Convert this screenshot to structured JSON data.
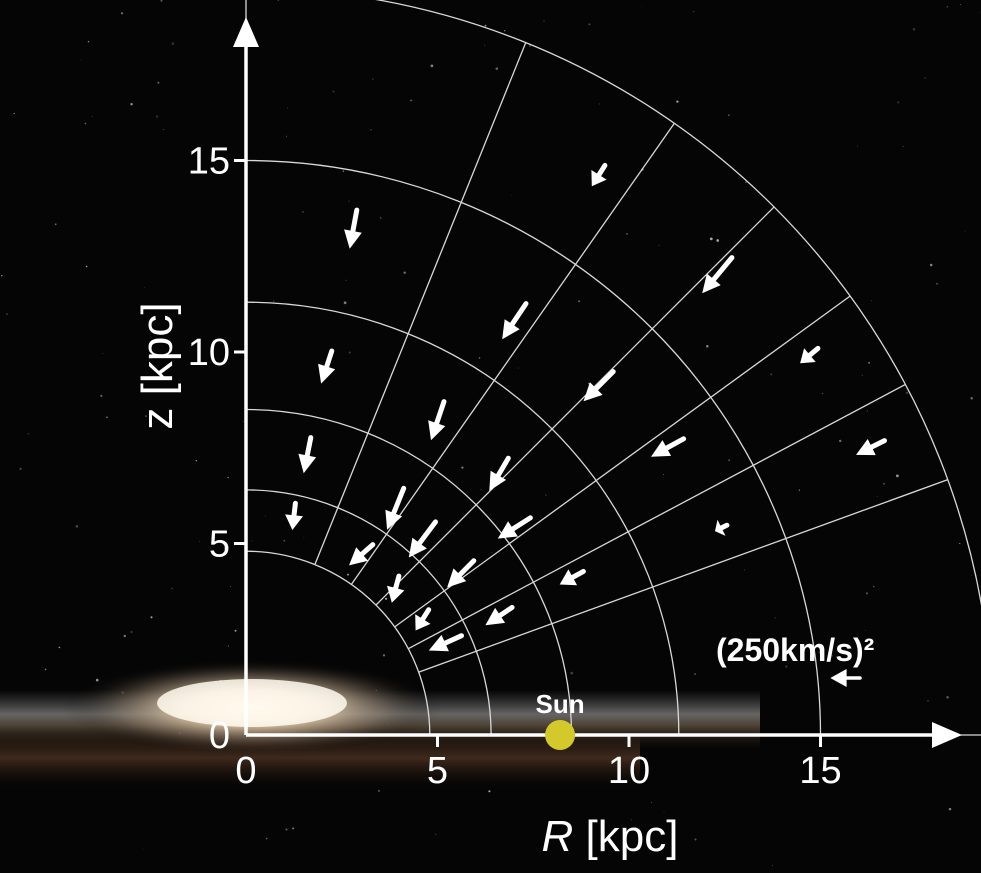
{
  "chart_data": {
    "type": "vector-field",
    "xlabel": "R [kpc]",
    "xlabel_var": "R",
    "xlabel_unit": " [kpc]",
    "ylabel": "z [kpc]",
    "xlim": [
      0,
      18.5
    ],
    "ylim": [
      0,
      18.5
    ],
    "x_ticks": [
      0,
      5,
      10,
      15
    ],
    "y_ticks": [
      0,
      5,
      10,
      15
    ],
    "grid": {
      "radii": [
        4.8,
        6.4,
        8.5,
        11.3,
        15.0,
        19.5
      ],
      "angles_deg": [
        0,
        20,
        28,
        36,
        45,
        55,
        68,
        90
      ]
    },
    "legend": {
      "label": "(250km/s)²",
      "placement": "bottom-right",
      "reference_length": 1.0
    },
    "sun": {
      "label": "Sun",
      "R": 8.2,
      "z": 0,
      "color": "#d4c92a"
    },
    "vectors": [
      {
        "R": 1.25,
        "z": 5.7,
        "dR": -0.05,
        "dz": -0.45
      },
      {
        "R": 1.6,
        "z": 7.3,
        "dR": -0.12,
        "dz": -0.6
      },
      {
        "R": 2.1,
        "z": 9.6,
        "dR": -0.18,
        "dz": -0.55
      },
      {
        "R": 2.8,
        "z": 13.2,
        "dR": -0.12,
        "dz": -0.65
      },
      {
        "R": 3.0,
        "z": 4.7,
        "dR": -0.4,
        "dz": -0.35
      },
      {
        "R": 3.9,
        "z": 5.9,
        "dR": -0.28,
        "dz": -0.7
      },
      {
        "R": 5.0,
        "z": 8.2,
        "dR": -0.22,
        "dz": -0.65
      },
      {
        "R": 3.9,
        "z": 3.8,
        "dR": -0.12,
        "dz": -0.45
      },
      {
        "R": 4.6,
        "z": 5.1,
        "dR": -0.45,
        "dz": -0.6
      },
      {
        "R": 6.6,
        "z": 6.8,
        "dR": -0.32,
        "dz": -0.55
      },
      {
        "R": 7.0,
        "z": 10.8,
        "dR": -0.4,
        "dz": -0.6
      },
      {
        "R": 4.6,
        "z": 3.0,
        "dR": -0.22,
        "dz": -0.35
      },
      {
        "R": 5.6,
        "z": 4.2,
        "dR": -0.45,
        "dz": -0.45
      },
      {
        "R": 7.0,
        "z": 5.4,
        "dR": -0.55,
        "dz": -0.35
      },
      {
        "R": 9.2,
        "z": 9.1,
        "dR": -0.5,
        "dz": -0.5
      },
      {
        "R": 9.2,
        "z": 14.6,
        "dR": -0.22,
        "dz": -0.35
      },
      {
        "R": 5.2,
        "z": 2.4,
        "dR": -0.55,
        "dz": -0.25
      },
      {
        "R": 6.6,
        "z": 3.1,
        "dR": -0.45,
        "dz": -0.3
      },
      {
        "R": 8.5,
        "z": 4.1,
        "dR": -0.4,
        "dz": -0.22
      },
      {
        "R": 11.0,
        "z": 7.5,
        "dR": -0.55,
        "dz": -0.3
      },
      {
        "R": 12.3,
        "z": 12.0,
        "dR": -0.5,
        "dz": -0.6
      },
      {
        "R": 12.4,
        "z": 5.4,
        "dR": -0.2,
        "dz": -0.1
      },
      {
        "R": 14.7,
        "z": 9.9,
        "dR": -0.3,
        "dz": -0.25
      },
      {
        "R": 16.3,
        "z": 7.5,
        "dR": -0.48,
        "dz": -0.24
      }
    ]
  }
}
